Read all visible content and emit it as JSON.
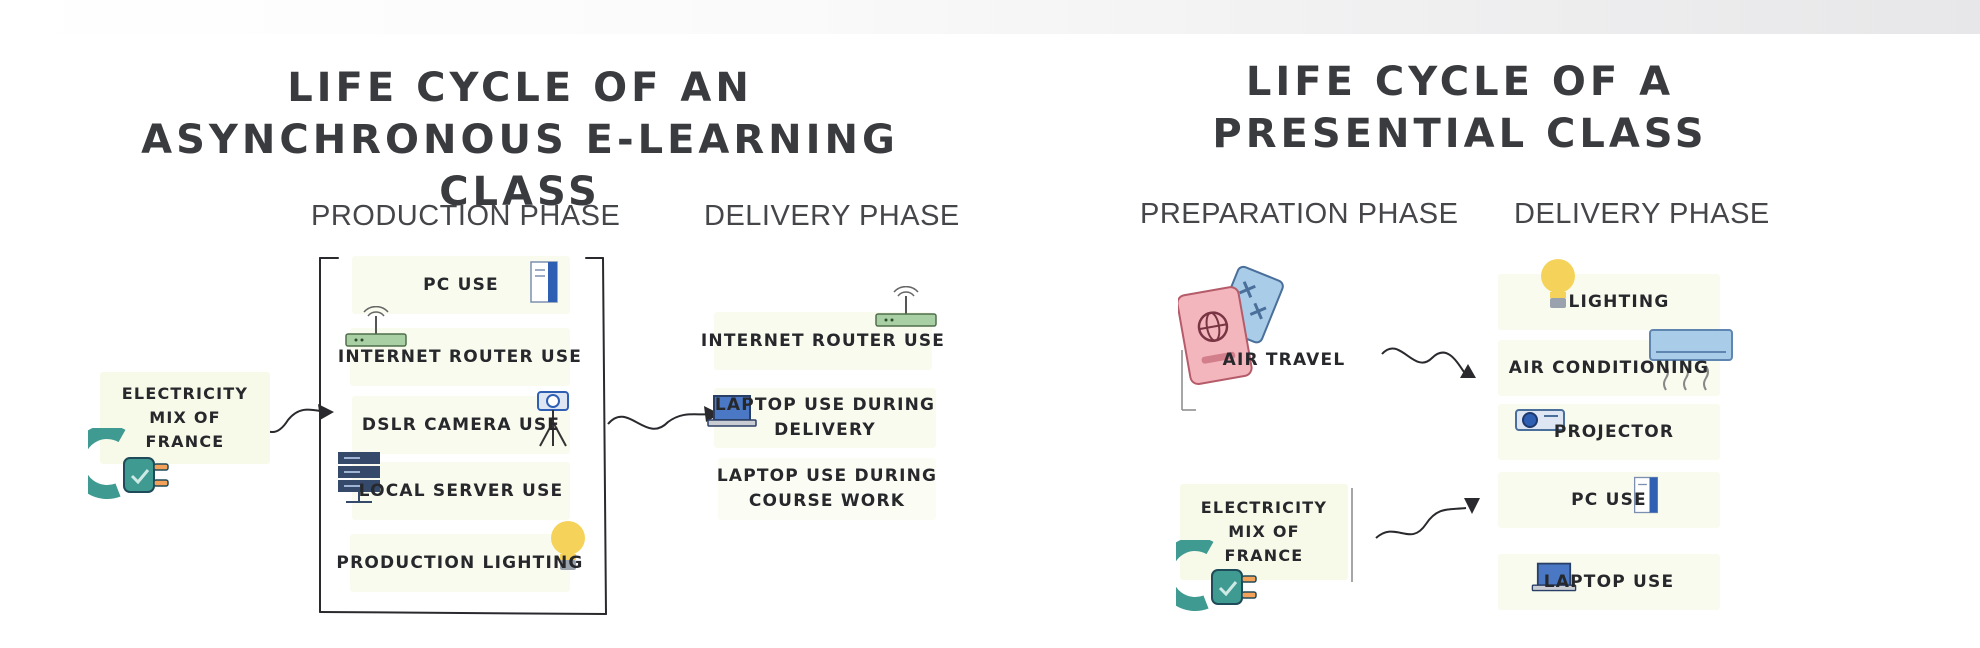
{
  "left": {
    "title_line1": "LIFE CYCLE OF AN",
    "title_line2": "ASYNCHRONOUS E-LEARNING CLASS",
    "production_phase": "PRODUCTION PHASE",
    "delivery_phase": "DELIVERY PHASE",
    "electricity": [
      "ELECTRICITY",
      "MIX OF",
      "FRANCE"
    ],
    "production_items": [
      "PC USE",
      "INTERNET ROUTER USE",
      "DSLR CAMERA USE",
      "LOCAL SERVER USE",
      "PRODUCTION LIGHTING"
    ],
    "delivery_items": {
      "router": "INTERNET ROUTER USE",
      "laptop_delivery": [
        "LAPTOP USE DURING",
        "DELIVERY"
      ],
      "laptop_course": [
        "LAPTOP USE DURING",
        "COURSE WORK"
      ]
    }
  },
  "right": {
    "title_line1": "LIFE CYCLE OF A",
    "title_line2": "PRESENTIAL CLASS",
    "preparation_phase": "PREPARATION PHASE",
    "delivery_phase": "DELIVERY PHASE",
    "air_travel": "AIR TRAVEL",
    "electricity": [
      "ELECTRICITY",
      "MIX OF",
      "FRANCE"
    ],
    "delivery_items": [
      "LIGHTING",
      "AIR CONDITIONING",
      "PROJECTOR",
      "PC USE",
      "LAPTOP USE"
    ]
  },
  "colors": {
    "title": "#3a3b3f",
    "box_bg": "#f9fbee",
    "plug_teal": "#3f9a91",
    "bulb_yellow": "#f2c94c",
    "laptop_blue": "#4a78c4"
  }
}
